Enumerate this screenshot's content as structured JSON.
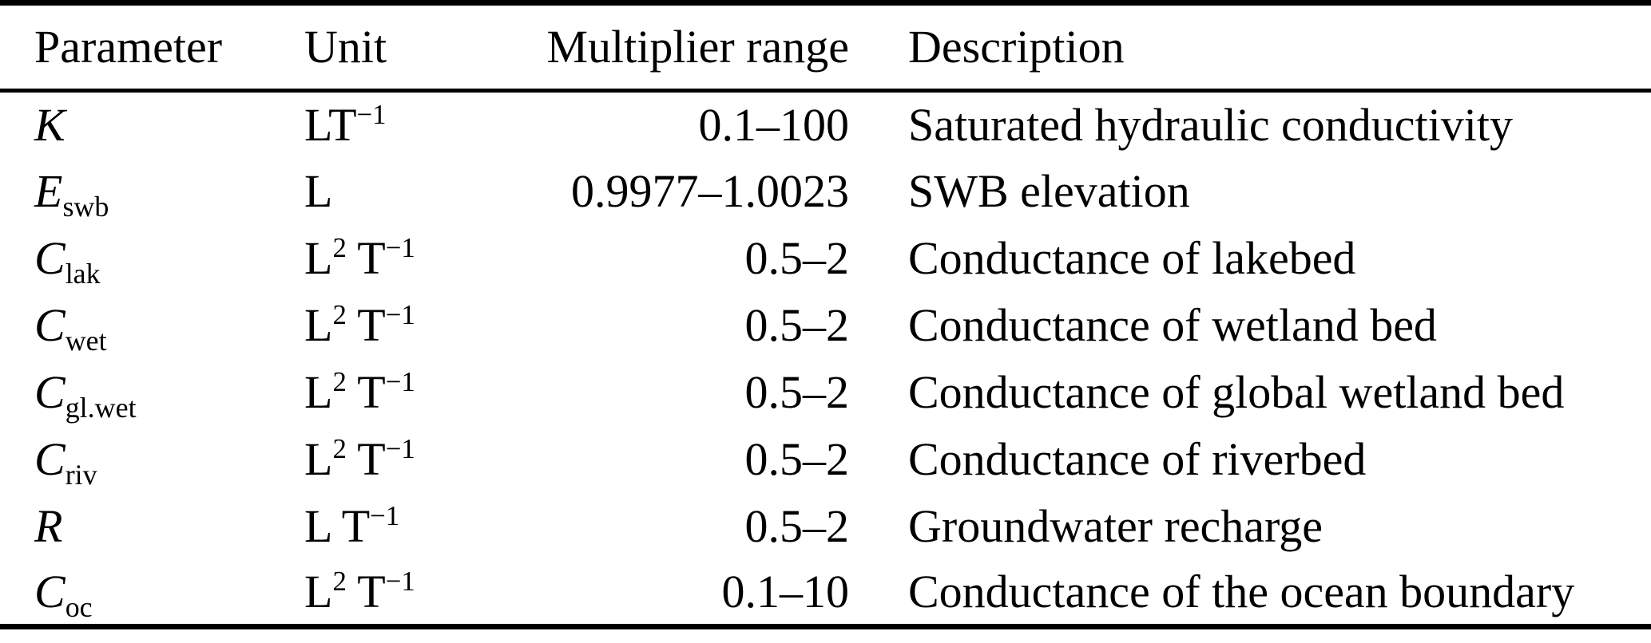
{
  "colors": {
    "text": "#000000",
    "background": "#ffffff",
    "rule": "#000000"
  },
  "table": {
    "columns": [
      {
        "label": "Parameter"
      },
      {
        "label": "Unit"
      },
      {
        "label": "Multiplier range"
      },
      {
        "label": "Description"
      }
    ],
    "rows": [
      {
        "param": {
          "base": "K",
          "sub": ""
        },
        "unit": [
          {
            "t": "LT"
          },
          {
            "t": "−1",
            "sup": true
          }
        ],
        "range": "0.1–100",
        "description": "Saturated hydraulic conductivity"
      },
      {
        "param": {
          "base": "E",
          "sub": "swb"
        },
        "unit": [
          {
            "t": "L"
          }
        ],
        "range": "0.9977–1.0023",
        "description": "SWB elevation"
      },
      {
        "param": {
          "base": "C",
          "sub": "lak"
        },
        "unit": [
          {
            "t": "L"
          },
          {
            "t": "2",
            "sup": true
          },
          {
            "t": " T"
          },
          {
            "t": "−1",
            "sup": true
          }
        ],
        "range": "0.5–2",
        "description": "Conductance of lakebed"
      },
      {
        "param": {
          "base": "C",
          "sub": "wet"
        },
        "unit": [
          {
            "t": "L"
          },
          {
            "t": "2",
            "sup": true
          },
          {
            "t": " T"
          },
          {
            "t": "−1",
            "sup": true
          }
        ],
        "range": "0.5–2",
        "description": "Conductance of wetland bed"
      },
      {
        "param": {
          "base": "C",
          "sub": "gl.wet"
        },
        "unit": [
          {
            "t": "L"
          },
          {
            "t": "2",
            "sup": true
          },
          {
            "t": " T"
          },
          {
            "t": "−1",
            "sup": true
          }
        ],
        "range": "0.5–2",
        "description": "Conductance of global wetland bed"
      },
      {
        "param": {
          "base": "C",
          "sub": "riv"
        },
        "unit": [
          {
            "t": "L"
          },
          {
            "t": "2",
            "sup": true
          },
          {
            "t": " T"
          },
          {
            "t": "−1",
            "sup": true
          }
        ],
        "range": "0.5–2",
        "description": "Conductance of riverbed"
      },
      {
        "param": {
          "base": "R",
          "sub": ""
        },
        "unit": [
          {
            "t": "L T"
          },
          {
            "t": "−1",
            "sup": true
          }
        ],
        "range": "0.5–2",
        "description": "Groundwater recharge"
      },
      {
        "param": {
          "base": "C",
          "sub": "oc"
        },
        "unit": [
          {
            "t": "L"
          },
          {
            "t": "2",
            "sup": true
          },
          {
            "t": " T"
          },
          {
            "t": "−1",
            "sup": true
          }
        ],
        "range": "0.1–10",
        "description": "Conductance of the ocean boundary"
      }
    ]
  }
}
